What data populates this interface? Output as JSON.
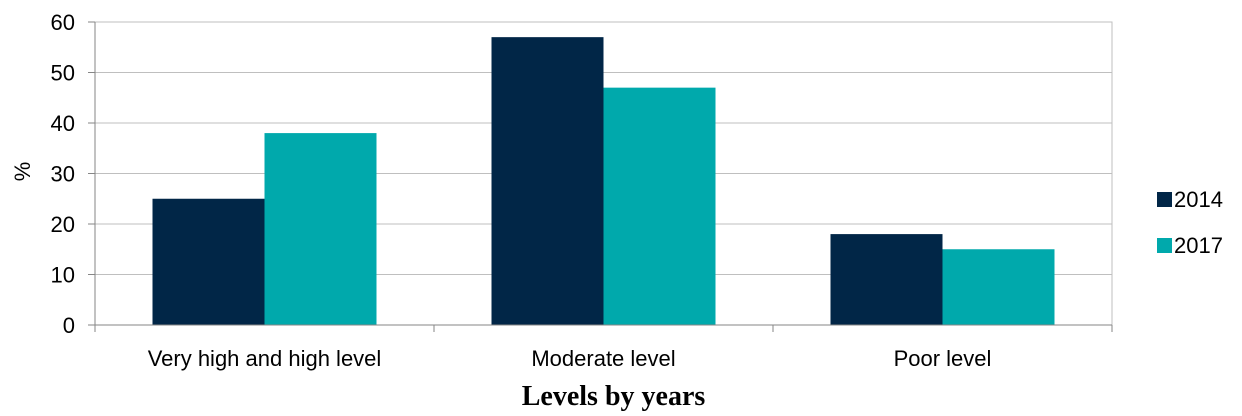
{
  "chart_data": {
    "type": "bar",
    "categories": [
      "Very high and high level",
      "Moderate level",
      "Poor level"
    ],
    "series": [
      {
        "name": "2014",
        "values": [
          25,
          57,
          18
        ],
        "color": "#012647"
      },
      {
        "name": "2017",
        "values": [
          38,
          47,
          15
        ],
        "color": "#00A9AC"
      }
    ],
    "title": "",
    "xlabel": "Levels by years",
    "ylabel": "%",
    "ylim": [
      0,
      60
    ],
    "yticks": [
      "0",
      "10",
      "20",
      "30",
      "40",
      "50",
      "60"
    ],
    "grid": true,
    "legend": "right"
  }
}
